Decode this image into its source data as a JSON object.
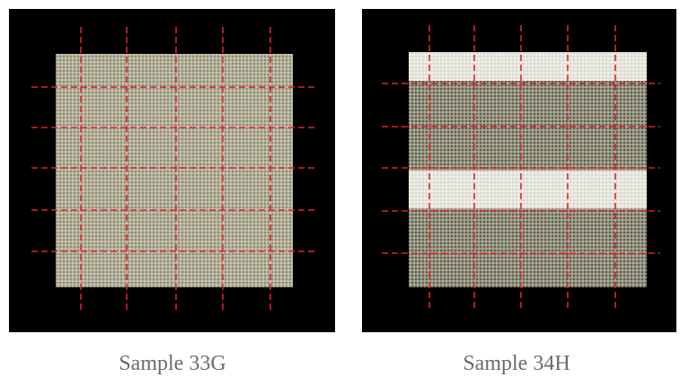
{
  "images": [
    {
      "caption": "Sample 33G"
    },
    {
      "caption": "Sample 34H"
    }
  ]
}
